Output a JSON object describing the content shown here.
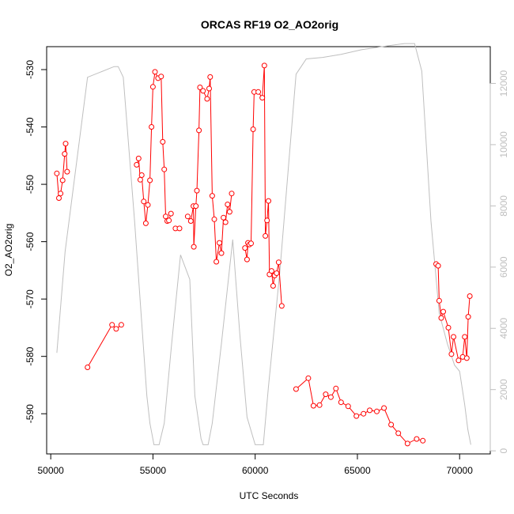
{
  "chart_data": {
    "type": "line",
    "title": "ORCAS RF19 O2_AO2orig",
    "xlabel": "UTC Seconds",
    "ylabel": "O2_AO2orig",
    "xlim": [
      49800,
      71500
    ],
    "ylim": [
      -597,
      -526
    ],
    "y2lim": [
      -100,
      13200
    ],
    "x_ticks": [
      50000,
      55000,
      60000,
      65000,
      70000
    ],
    "x_tick_labels": [
      "50000",
      "55000",
      "60000",
      "65000",
      "70000"
    ],
    "y_ticks": [
      -590,
      -580,
      -570,
      -560,
      -550,
      -540,
      -530
    ],
    "y_tick_labels": [
      "-590",
      "-580",
      "-570",
      "-560",
      "-550",
      "-540",
      "-530"
    ],
    "y2_ticks": [
      0,
      2000,
      4000,
      6000,
      8000,
      10000,
      12000
    ],
    "y2_tick_labels": [
      "0",
      "2000",
      "4000",
      "6000",
      "8000",
      "10000",
      "12000"
    ],
    "grid": false,
    "colors": {
      "primary": "#ff0000",
      "secondary": "#bfbfbf",
      "axis": "#000000",
      "secondary_axis": "#bfbfbf"
    },
    "series": [
      {
        "axis": "left",
        "markers": true,
        "segments": [
          [
            [
              50300,
              -548.1
            ],
            [
              50400,
              -552.4
            ],
            [
              50480,
              -551.6
            ],
            [
              50580,
              -549.3
            ],
            [
              50680,
              -544.7
            ],
            [
              50730,
              -542.9
            ],
            [
              50800,
              -547.8
            ]
          ],
          [
            [
              51800,
              -581.9
            ],
            [
              53000,
              -574.5
            ],
            [
              53200,
              -575.2
            ],
            [
              53450,
              -574.5
            ]
          ],
          [
            [
              54200,
              -546.6
            ],
            [
              54300,
              -545.5
            ],
            [
              54380,
              -549.2
            ],
            [
              54450,
              -548.4
            ],
            [
              54550,
              -553
            ],
            [
              54650,
              -556.8
            ],
            [
              54750,
              -553.6
            ],
            [
              54850,
              -549.3
            ],
            [
              54930,
              -540
            ],
            [
              55000,
              -533
            ],
            [
              55100,
              -530.4
            ],
            [
              55250,
              -531.5
            ],
            [
              55400,
              -531.2
            ],
            [
              55480,
              -542.6
            ],
            [
              55550,
              -547.4
            ],
            [
              55620,
              -555.6
            ],
            [
              55700,
              -556.4
            ],
            [
              55780,
              -556.3
            ],
            [
              55880,
              -555.1
            ]
          ],
          [
            [
              56100,
              -557.7
            ],
            [
              56300,
              -557.7
            ]
          ],
          [
            [
              56700,
              -555.6
            ],
            [
              56850,
              -556.4
            ],
            [
              56980,
              -553.8
            ],
            [
              57000,
              -560.9
            ],
            [
              57100,
              -553.8
            ],
            [
              57150,
              -551.1
            ],
            [
              57250,
              -540.6
            ],
            [
              57300,
              -533.1
            ],
            [
              57450,
              -533.7
            ],
            [
              57650,
              -535.1
            ],
            [
              57750,
              -533.3
            ],
            [
              57800,
              -531.3
            ],
            [
              57900,
              -552
            ],
            [
              58000,
              -556.1
            ],
            [
              58100,
              -563.5
            ],
            [
              58250,
              -560.2
            ],
            [
              58350,
              -562
            ],
            [
              58450,
              -555.8
            ],
            [
              58550,
              -556.6
            ],
            [
              58650,
              -553.5
            ],
            [
              58750,
              -554.8
            ],
            [
              58850,
              -551.6
            ]
          ],
          [
            [
              59500,
              -561.1
            ],
            [
              59600,
              -563.1
            ],
            [
              59650,
              -560.2
            ],
            [
              59720,
              -560.5
            ],
            [
              59800,
              -560.3
            ],
            [
              59900,
              -540.4
            ],
            [
              59950,
              -533.9
            ],
            [
              60150,
              -533.9
            ],
            [
              60350,
              -534.9
            ],
            [
              60450,
              -529.3
            ],
            [
              60500,
              -559
            ],
            [
              60580,
              -556.3
            ],
            [
              60650,
              -552.9
            ],
            [
              60700,
              -565.7
            ],
            [
              60800,
              -565.1
            ],
            [
              60880,
              -567.7
            ],
            [
              60950,
              -565.9
            ],
            [
              61050,
              -565.5
            ],
            [
              61150,
              -563.6
            ],
            [
              61300,
              -571.2
            ]
          ],
          [
            [
              62000,
              -585.7
            ],
            [
              62600,
              -583.8
            ],
            [
              62850,
              -588.6
            ],
            [
              63150,
              -588.5
            ],
            [
              63450,
              -586.6
            ],
            [
              63700,
              -587.1
            ],
            [
              63950,
              -585.6
            ],
            [
              64200,
              -588
            ],
            [
              64550,
              -588.7
            ],
            [
              64950,
              -590.4
            ],
            [
              65300,
              -590
            ],
            [
              65600,
              -589.4
            ],
            [
              65950,
              -589.6
            ],
            [
              66300,
              -589
            ],
            [
              66650,
              -591.9
            ],
            [
              67000,
              -593.4
            ],
            [
              67450,
              -595.2
            ],
            [
              67900,
              -594.4
            ],
            [
              68200,
              -594.7
            ]
          ],
          [
            [
              68850,
              -563.9
            ],
            [
              68950,
              -564.2
            ],
            [
              69000,
              -570.3
            ],
            [
              69100,
              -573.3
            ],
            [
              69200,
              -572.2
            ],
            [
              69450,
              -575
            ],
            [
              69600,
              -579.6
            ],
            [
              69700,
              -576.6
            ],
            [
              69950,
              -580.7
            ],
            [
              70150,
              -580.1
            ],
            [
              70250,
              -576.6
            ],
            [
              70350,
              -580.3
            ],
            [
              70420,
              -573.1
            ],
            [
              70500,
              -569.5
            ]
          ]
        ]
      },
      {
        "axis": "right",
        "markers": false,
        "points": [
          [
            50300,
            3200
          ],
          [
            50700,
            6500
          ],
          [
            51800,
            12200
          ],
          [
            53100,
            12550
          ],
          [
            53300,
            12550
          ],
          [
            53550,
            12200
          ],
          [
            54100,
            7500
          ],
          [
            54700,
            1800
          ],
          [
            54850,
            900
          ],
          [
            55050,
            200
          ],
          [
            55300,
            200
          ],
          [
            55550,
            900
          ],
          [
            55900,
            3400
          ],
          [
            56350,
            6400
          ],
          [
            56800,
            5600
          ],
          [
            57050,
            1800
          ],
          [
            57350,
            400
          ],
          [
            57450,
            200
          ],
          [
            57700,
            200
          ],
          [
            57900,
            900
          ],
          [
            58350,
            3500
          ],
          [
            58900,
            6900
          ],
          [
            59250,
            3800
          ],
          [
            59600,
            1100
          ],
          [
            60000,
            200
          ],
          [
            60400,
            200
          ],
          [
            60650,
            2100
          ],
          [
            61200,
            5800
          ],
          [
            62000,
            12300
          ],
          [
            62500,
            12800
          ],
          [
            63300,
            12850
          ],
          [
            64200,
            12950
          ],
          [
            65200,
            13100
          ],
          [
            66200,
            13200
          ],
          [
            67300,
            13300
          ],
          [
            67800,
            13300
          ],
          [
            68150,
            12400
          ],
          [
            68600,
            7500
          ],
          [
            69000,
            4500
          ],
          [
            69400,
            3500
          ],
          [
            69750,
            2800
          ],
          [
            70000,
            2600
          ],
          [
            70250,
            1500
          ],
          [
            70400,
            700
          ],
          [
            70550,
            200
          ]
        ]
      }
    ]
  }
}
